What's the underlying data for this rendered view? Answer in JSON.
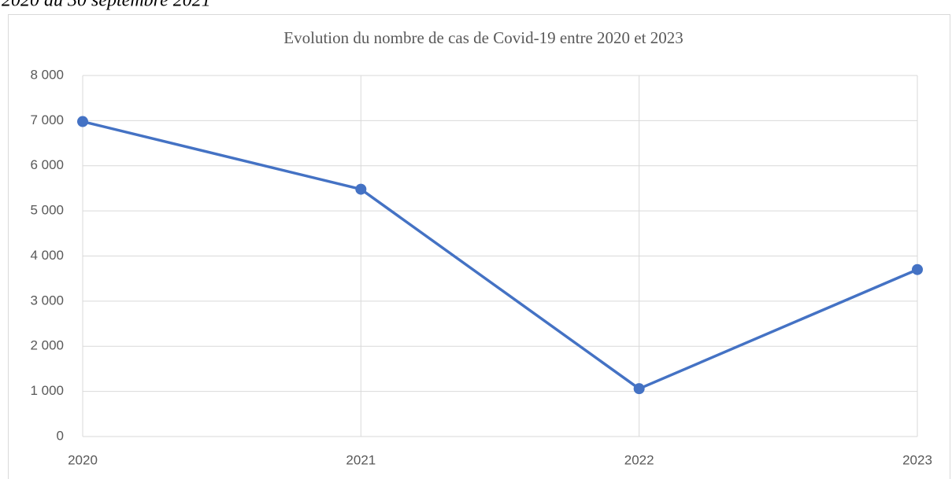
{
  "caption": "2020 au 30 septembre 2021",
  "chart_data": {
    "type": "line",
    "title": "Evolution du nombre de cas de Covid-19 entre 2020 et 2023",
    "x": [
      2020,
      2021,
      2022,
      2023
    ],
    "values": [
      6980,
      5480,
      1060,
      3700
    ],
    "color": "#4472c4",
    "xlim": [
      2020,
      2023
    ],
    "xticks": [
      2020,
      2021,
      2022,
      2023
    ],
    "ylim": [
      0,
      8000
    ],
    "yticks": [
      0,
      {
        "value": 1000,
        "label": "1 000"
      },
      {
        "value": 2000,
        "label": "2 000"
      },
      {
        "value": 3000,
        "label": "3 000"
      },
      {
        "value": 4000,
        "label": "4 000"
      },
      {
        "value": 5000,
        "label": "5 000"
      },
      {
        "value": 6000,
        "label": "6 000"
      },
      {
        "value": 7000,
        "label": "7 000"
      },
      {
        "value": 8000,
        "label": "8 000"
      }
    ],
    "grid": true
  }
}
